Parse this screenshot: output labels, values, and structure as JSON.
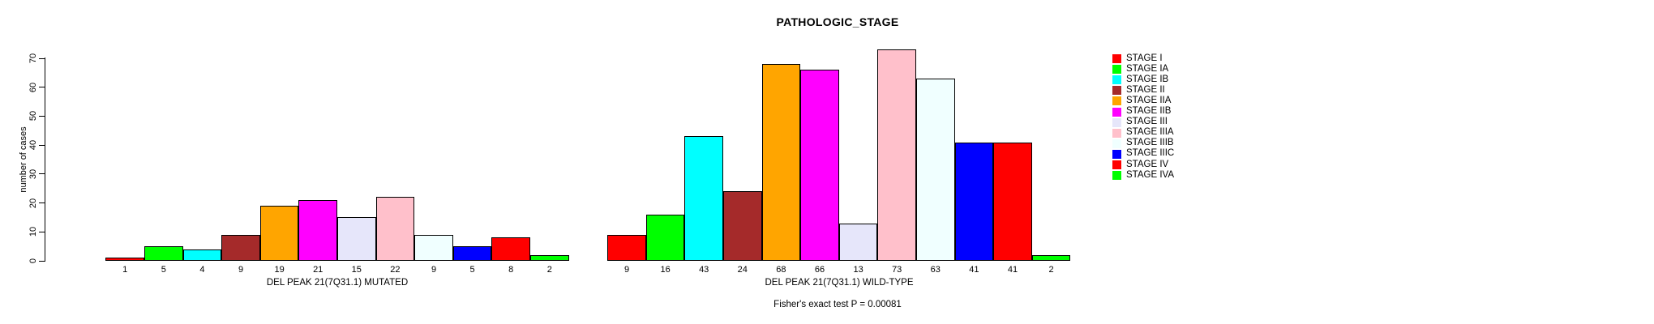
{
  "chart_data": {
    "type": "bar",
    "title": "PATHOLOGIC_STAGE",
    "ylabel": "number of cases",
    "ylim": [
      0,
      70
    ],
    "yticks": [
      0,
      10,
      20,
      30,
      40,
      50,
      60,
      70
    ],
    "grid": false,
    "legend_position": "right",
    "categories": [
      "STAGE I",
      "STAGE IA",
      "STAGE IB",
      "STAGE II",
      "STAGE IIA",
      "STAGE IIB",
      "STAGE III",
      "STAGE IIIA",
      "STAGE IIIB",
      "STAGE IIIC",
      "STAGE IV",
      "STAGE IVA"
    ],
    "palette": [
      "#FF0000",
      "#00FF00",
      "#00FFFF",
      "#A52A2A",
      "#FFA500",
      "#FF00FF",
      "#E6E6FA",
      "#FFC0CB",
      "#F0FFFF",
      "#0000FF",
      "#FF0000",
      "#00FF00"
    ],
    "legend": [
      {
        "label": "STAGE I",
        "color": "#FF0000"
      },
      {
        "label": "STAGE IA",
        "color": "#00FF00"
      },
      {
        "label": "STAGE IB",
        "color": "#00FFFF"
      },
      {
        "label": "STAGE II",
        "color": "#A52A2A"
      },
      {
        "label": "STAGE IIA",
        "color": "#FFA500"
      },
      {
        "label": "STAGE IIB",
        "color": "#FF00FF"
      },
      {
        "label": "STAGE III",
        "color": "#E6E6FA"
      },
      {
        "label": "STAGE IIIA",
        "color": "#FFC0CB"
      },
      {
        "label": "STAGE IIIB",
        "color": "#F0FFFF"
      },
      {
        "label": "STAGE IIIC",
        "color": "#0000FF"
      },
      {
        "label": "STAGE IV",
        "color": "#FF0000"
      },
      {
        "label": "STAGE IVA",
        "color": "#00FF00"
      }
    ],
    "groups": [
      {
        "label": "DEL PEAK 21(7Q31.1) MUTATED",
        "values": [
          1,
          5,
          4,
          9,
          19,
          21,
          15,
          22,
          9,
          5,
          8,
          2
        ]
      },
      {
        "label": "DEL PEAK 21(7Q31.1) WILD-TYPE",
        "values": [
          9,
          16,
          43,
          24,
          68,
          66,
          13,
          73,
          63,
          41,
          41,
          2
        ]
      }
    ],
    "annotation": "Fisher's exact test P = 0.00081"
  }
}
